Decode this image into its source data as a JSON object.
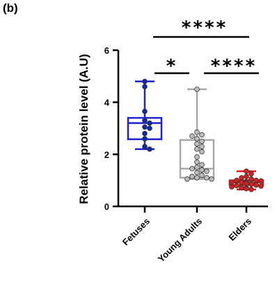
{
  "panel_label": "(b)",
  "chart_data": {
    "type": "box",
    "title": "",
    "xlabel": "",
    "ylabel": "Relative protein level (A.U)",
    "ylim": [
      0,
      6
    ],
    "yticks": [
      0,
      2,
      4,
      6
    ],
    "categories": [
      "Fetuses",
      "Young Adults",
      "Elders"
    ],
    "series": [
      {
        "category": "Fetuses",
        "color": "#1f1fd6",
        "point_color": "#0a2aa8",
        "min": 2.2,
        "q1": 2.58,
        "median": 3.2,
        "q3": 3.4,
        "max": 4.8,
        "points": [
          4.8,
          4.6,
          3.65,
          3.3,
          3.2,
          3.05,
          3.0,
          2.8,
          2.6,
          2.3,
          2.2
        ]
      },
      {
        "category": "Young Adults",
        "color": "#a8a8a8",
        "point_color": "#bdbdbd",
        "min": 1.05,
        "q1": 1.1,
        "median": 1.45,
        "q3": 2.55,
        "max": 4.5,
        "points": [
          4.5,
          2.85,
          2.75,
          2.7,
          2.6,
          2.5,
          2.4,
          2.3,
          2.2,
          2.1,
          1.9,
          1.7,
          1.6,
          1.5,
          1.45,
          1.4,
          1.35,
          1.3,
          1.2,
          1.15,
          1.1,
          1.1,
          1.05,
          1.05
        ]
      },
      {
        "category": "Elders",
        "color": "#e31a1a",
        "point_color": "#d42020",
        "min": 0.65,
        "q1": 0.82,
        "median": 0.92,
        "q3": 1.0,
        "max": 1.35,
        "points": [
          1.35,
          1.25,
          1.15,
          1.1,
          1.05,
          1.0,
          1.0,
          0.98,
          0.95,
          0.93,
          0.92,
          0.9,
          0.88,
          0.85,
          0.82,
          0.8,
          0.78,
          0.75,
          0.72,
          0.7,
          0.68,
          0.65
        ]
      }
    ],
    "significance": [
      {
        "from": "Fetuses",
        "to": "Elders",
        "label": "****"
      },
      {
        "from": "Fetuses",
        "to": "Young Adults",
        "label": "*"
      },
      {
        "from": "Young Adults",
        "to": "Elders",
        "label": "****"
      }
    ]
  }
}
